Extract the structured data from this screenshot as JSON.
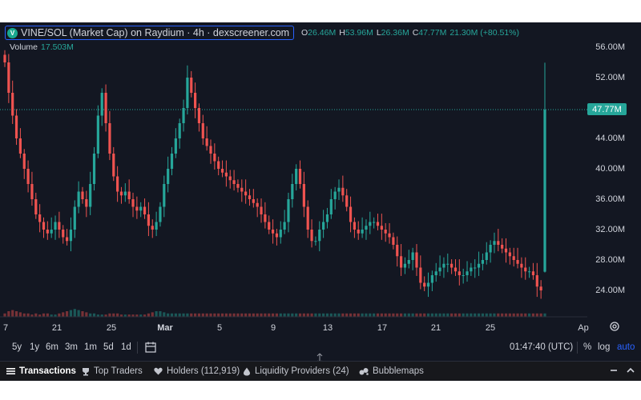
{
  "header": {
    "symbol": "VINE/SOL (Market Cap) on Raydium · 4h · dexscreener.com",
    "ohlc": [
      {
        "key": "O",
        "value": "26.46M"
      },
      {
        "key": "H",
        "value": "53.96M"
      },
      {
        "key": "L",
        "value": "26.36M"
      },
      {
        "key": "C",
        "value": "47.77M"
      },
      {
        "key": "",
        "value": "21.30M (+80.51%)"
      }
    ],
    "volume_label": "Volume",
    "volume_value": "17.503M"
  },
  "price_axis": {
    "labels": [
      "56.00M",
      "52.00M",
      "44.00M",
      "40.00M",
      "36.00M",
      "32.00M",
      "28.00M",
      "24.00M"
    ],
    "current_price": "47.77M"
  },
  "time_axis": {
    "labels": [
      "7",
      "21",
      "25",
      "Mar",
      "5",
      "9",
      "13",
      "17",
      "21",
      "25",
      "Ap"
    ]
  },
  "toolbar": {
    "ranges": [
      "5y",
      "1y",
      "6m",
      "3m",
      "1m",
      "5d",
      "1d"
    ],
    "time": "01:47:40 (UTC)",
    "percent": "%",
    "log": "log",
    "auto": "auto"
  },
  "tabs": {
    "transactions": "Transactions",
    "top_traders": "Top Traders",
    "holders": "Holders (112,919)",
    "liquidity": "Liquidity Providers (24)",
    "bubblemaps": "Bubblemaps"
  },
  "colors": {
    "up": "#26a69a",
    "down": "#ef5350",
    "background": "#131722",
    "accent": "#2962ff"
  },
  "chart_data": {
    "type": "candlestick",
    "unit": "M",
    "y_axis_range": [
      22,
      58
    ],
    "current_price": 47.77,
    "x_labels": [
      "7",
      "21",
      "25",
      "Mar",
      "5",
      "9",
      "13",
      "17",
      "21",
      "25",
      "Ap"
    ],
    "close_path": [
      54,
      50,
      47,
      44,
      42,
      40,
      38,
      36,
      34,
      33,
      32,
      31.5,
      32,
      33,
      32,
      31,
      30.5,
      32,
      35,
      37,
      36,
      35,
      38,
      42,
      47,
      50,
      46,
      42,
      39,
      37,
      36.5,
      37,
      36,
      35,
      34.5,
      35,
      34,
      32.5,
      32,
      33,
      35,
      38,
      40,
      42,
      44,
      46,
      48,
      52,
      50,
      48,
      46,
      44,
      43,
      42,
      41,
      40,
      39.5,
      39,
      38.5,
      38,
      37.5,
      37,
      36.5,
      36,
      35.5,
      35,
      34,
      33,
      32,
      31.5,
      31,
      32,
      33,
      36,
      38,
      40,
      38,
      35,
      32,
      30.5,
      30.5,
      32,
      33,
      34,
      36,
      37,
      37.5,
      36.5,
      35,
      33,
      32,
      31.5,
      32,
      32.5,
      33,
      33,
      32.5,
      32,
      31.5,
      31,
      30,
      28.5,
      27,
      27.5,
      28,
      29,
      27,
      25,
      24.5,
      25,
      26,
      26.5,
      27,
      27.5,
      27.5,
      27,
      26.5,
      26,
      26,
      26.5,
      27,
      27,
      27.5,
      28,
      29,
      30,
      30.5,
      30,
      29.5,
      29,
      28.5,
      28,
      27.5,
      27,
      26.5,
      26.5,
      26,
      24.5,
      24,
      47.77
    ],
    "volume_path": [
      0.3,
      0.5,
      0.6,
      0.5,
      0.4,
      0.3,
      0.3,
      0.2,
      0.3,
      0.2,
      0.3,
      0.3,
      0.2,
      0.2,
      0.3,
      0.4,
      0.5,
      0.6,
      0.7,
      0.6,
      0.5,
      0.4,
      0.3,
      0.3,
      0.2,
      0.2,
      0.2,
      0.3,
      0.3,
      0.3,
      0.2,
      0.2,
      0.2,
      0.2,
      0.2,
      0.2,
      0.2,
      0.3,
      0.4,
      0.5,
      0.5,
      0.4,
      0.3,
      0.3,
      0.3,
      0.3,
      0.3,
      0.3,
      0.3,
      0.3,
      0.3,
      0.3,
      0.3,
      0.3,
      0.3,
      0.3,
      0.3,
      0.3,
      0.3,
      0.3,
      0.3,
      0.3,
      0.3,
      0.3,
      0.3,
      0.3,
      0.3,
      0.3,
      0.3,
      0.3,
      0.3,
      0.3,
      0.3,
      0.3,
      0.3,
      0.3,
      0.3,
      0.3,
      0.3,
      0.3,
      0.3,
      0.3,
      0.3,
      0.3,
      0.3,
      0.3,
      0.3,
      0.3,
      0.3,
      0.3,
      0.3,
      0.3,
      0.3,
      0.3,
      0.3,
      0.3,
      0.3,
      0.3,
      0.3,
      0.3,
      0.3,
      0.3,
      0.3,
      0.3,
      0.3,
      0.3,
      0.3,
      0.3,
      0.3,
      0.3,
      0.3,
      0.3,
      0.3,
      0.3,
      0.3,
      0.3,
      0.3,
      0.3,
      0.3,
      0.3,
      0.3,
      0.3,
      0.3,
      0.3,
      0.3,
      0.3,
      0.3,
      0.3,
      0.3,
      0.3,
      0.3,
      0.3,
      0.3,
      0.3,
      0.3,
      0.3,
      0.3,
      0.3,
      0.3,
      0.3,
      0.3,
      0.3,
      0.3,
      0.3,
      17.5
    ]
  }
}
